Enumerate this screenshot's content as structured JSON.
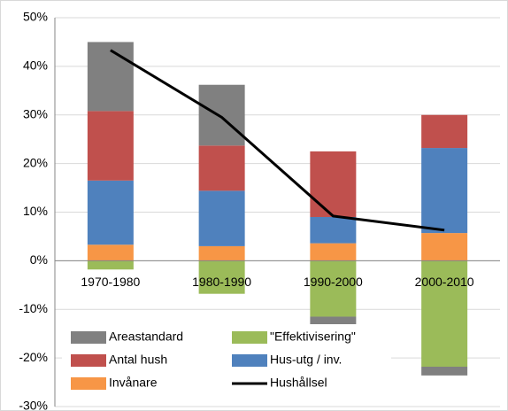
{
  "chart_data": {
    "type": "bar",
    "categories": [
      "1970-1980",
      "1980-1990",
      "1990-2000",
      "2000-2010"
    ],
    "series": [
      {
        "name": "Areastandard",
        "color": "#808080",
        "values": [
          14.2,
          12.5,
          -1.8,
          -1.8
        ]
      },
      {
        "name": "\"Effektivisering\"",
        "color": "#9bbb59",
        "values": [
          -1.8,
          -6.8,
          -11.5,
          -21.8
        ]
      },
      {
        "name": "Antal hush",
        "color": "#c0504d",
        "values": [
          14.3,
          9.3,
          13.5,
          6.8
        ]
      },
      {
        "name": "Hus-utg / inv.",
        "color": "#4f81bd",
        "values": [
          13.2,
          11.4,
          5.4,
          17.5
        ]
      },
      {
        "name": "Invånare",
        "color": "#f79646",
        "values": [
          3.3,
          3.0,
          3.6,
          5.7
        ]
      },
      {
        "name": "Hushållsel",
        "type": "line",
        "color": "#000000",
        "values": [
          43.3,
          29.5,
          9.2,
          6.3
        ]
      }
    ],
    "ylim": [
      -30,
      50
    ],
    "yticks": [
      {
        "value": -30,
        "label": "-30%"
      },
      {
        "value": -20,
        "label": "-20%"
      },
      {
        "value": -10,
        "label": "-10%"
      },
      {
        "value": 0,
        "label": "0%"
      },
      {
        "value": 10,
        "label": "10%"
      },
      {
        "value": 20,
        "label": "20%"
      },
      {
        "value": 30,
        "label": "30%"
      },
      {
        "value": 40,
        "label": "40%"
      },
      {
        "value": 50,
        "label": "50%"
      }
    ],
    "grid": true
  }
}
